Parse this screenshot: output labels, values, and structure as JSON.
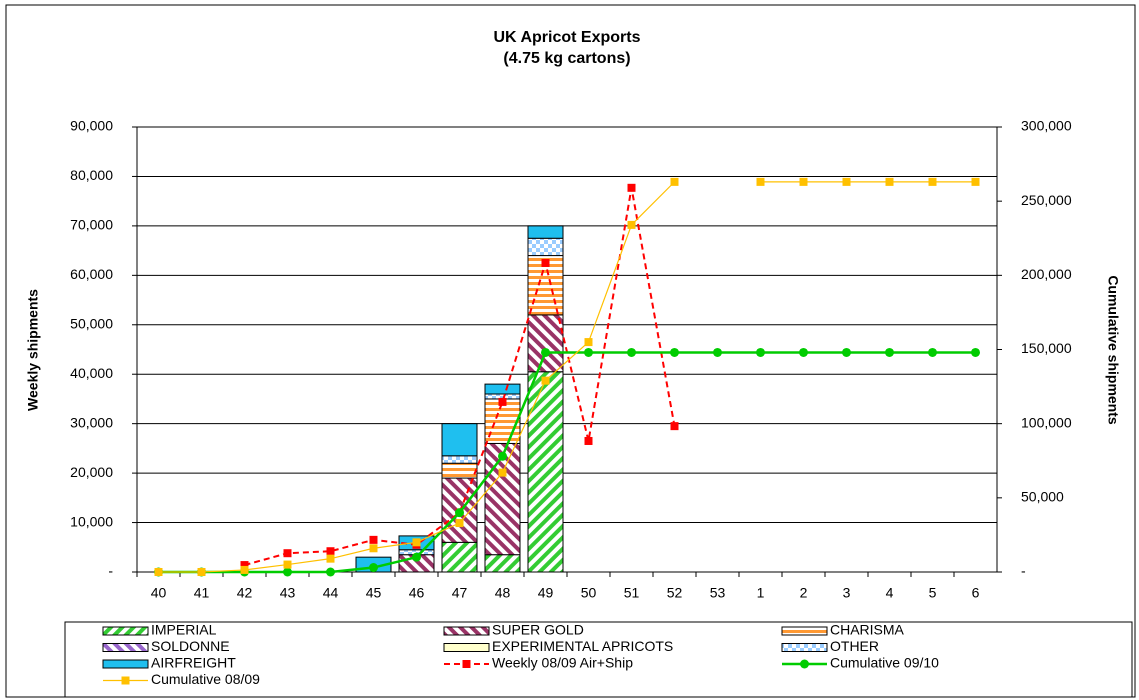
{
  "chart_data": {
    "type": "bar",
    "title": "UK Apricot Exports",
    "subtitle": "(4.75 kg cartons)",
    "y_label": "Weekly shipments",
    "y2_label": "Cumulative shipments",
    "categories": [
      "40",
      "41",
      "42",
      "43",
      "44",
      "45",
      "46",
      "47",
      "48",
      "49",
      "50",
      "51",
      "52",
      "53",
      "1",
      "2",
      "3",
      "4",
      "5",
      "6"
    ],
    "ylim": [
      0,
      90000
    ],
    "yticks": [
      {
        "value": 0,
        "label": "-"
      },
      {
        "value": 10000,
        "label": "10,000"
      },
      {
        "value": 20000,
        "label": "20,000"
      },
      {
        "value": 30000,
        "label": "30,000"
      },
      {
        "value": 40000,
        "label": "40,000"
      },
      {
        "value": 50000,
        "label": "50,000"
      },
      {
        "value": 60000,
        "label": "60,000"
      },
      {
        "value": 70000,
        "label": "70,000"
      },
      {
        "value": 80000,
        "label": "80,000"
      },
      {
        "value": 90000,
        "label": "90,000"
      }
    ],
    "y2lim": [
      0,
      300000
    ],
    "y2ticks": [
      {
        "value": 0,
        "label": "-"
      },
      {
        "value": 50000,
        "label": "50,000"
      },
      {
        "value": 100000,
        "label": "100,000"
      },
      {
        "value": 150000,
        "label": "150,000"
      },
      {
        "value": 200000,
        "label": "200,000"
      },
      {
        "value": 250000,
        "label": "250,000"
      },
      {
        "value": 300000,
        "label": "300,000"
      }
    ],
    "grid": true,
    "series": [
      {
        "name": "IMPERIAL",
        "type": "bar",
        "color": "#33cc33",
        "pattern": "diagonal",
        "values": [
          0,
          0,
          0,
          0,
          0,
          0,
          0,
          6000,
          3500,
          40500,
          0,
          0,
          0,
          0,
          0,
          0,
          0,
          0,
          0,
          0
        ]
      },
      {
        "name": "SUPER GOLD",
        "type": "bar",
        "color": "#993366",
        "pattern": "diagonal-reverse",
        "values": [
          0,
          0,
          0,
          0,
          0,
          0,
          3500,
          13000,
          22500,
          11500,
          0,
          0,
          0,
          0,
          0,
          0,
          0,
          0,
          0,
          0
        ]
      },
      {
        "name": "CHARISMA",
        "type": "bar",
        "color": "#ff9933",
        "pattern": "horizontal",
        "values": [
          0,
          0,
          0,
          0,
          0,
          0,
          0,
          3000,
          9000,
          12000,
          0,
          0,
          0,
          0,
          0,
          0,
          0,
          0,
          0,
          0
        ]
      },
      {
        "name": "SOLDONNE",
        "type": "bar",
        "color": "#9966cc",
        "pattern": "diagonal-reverse",
        "values": [
          0,
          0,
          0,
          0,
          0,
          0,
          0,
          0,
          0,
          0,
          0,
          0,
          0,
          0,
          0,
          0,
          0,
          0,
          0,
          0
        ]
      },
      {
        "name": "EXPERIMENTAL APRICOTS",
        "type": "bar",
        "color": "#ffffcc",
        "pattern": "solid",
        "values": [
          0,
          0,
          0,
          0,
          0,
          0,
          0,
          0,
          0,
          0,
          0,
          0,
          0,
          0,
          0,
          0,
          0,
          0,
          0,
          0
        ]
      },
      {
        "name": "OTHER",
        "type": "bar",
        "color": "#99ccff",
        "pattern": "checker",
        "values": [
          0,
          0,
          0,
          0,
          0,
          0,
          1000,
          1500,
          1000,
          3500,
          0,
          0,
          0,
          0,
          0,
          0,
          0,
          0,
          0,
          0
        ]
      },
      {
        "name": "AIRFREIGHT",
        "type": "bar",
        "color": "#1fbfef",
        "pattern": "solid",
        "values": [
          0,
          0,
          0,
          0,
          0,
          3000,
          2800,
          6500,
          2000,
          2500,
          0,
          0,
          0,
          0,
          0,
          0,
          0,
          0,
          0,
          0
        ]
      },
      {
        "name": "Weekly 08/09 Air+Ship",
        "type": "line",
        "color": "#ff0000",
        "dash": true,
        "marker": "square",
        "width": 2,
        "values": [
          null,
          null,
          1400,
          3800,
          4200,
          6500,
          5500,
          12000,
          34400,
          62500,
          26500,
          77700,
          29500,
          null,
          null,
          null,
          null,
          null,
          null,
          null
        ]
      },
      {
        "name": "Cumulative 09/10",
        "type": "line",
        "axis": "y2",
        "color": "#00cc00",
        "marker": "circle",
        "width": 2.5,
        "values": [
          0,
          0,
          0,
          0,
          0,
          3000,
          10000,
          40000,
          78000,
          148000,
          148000,
          148000,
          148000,
          148000,
          148000,
          148000,
          148000,
          148000,
          148000,
          148000
        ]
      },
      {
        "name": "Cumulative 08/09",
        "type": "line",
        "axis": "y2",
        "color": "#ffc000",
        "marker": "square",
        "width": 1.2,
        "values": [
          0,
          0,
          1400,
          5000,
          9000,
          16000,
          20000,
          33000,
          67000,
          129000,
          155000,
          234000,
          263000,
          null,
          263000,
          263000,
          263000,
          263000,
          263000,
          263000
        ]
      }
    ]
  }
}
